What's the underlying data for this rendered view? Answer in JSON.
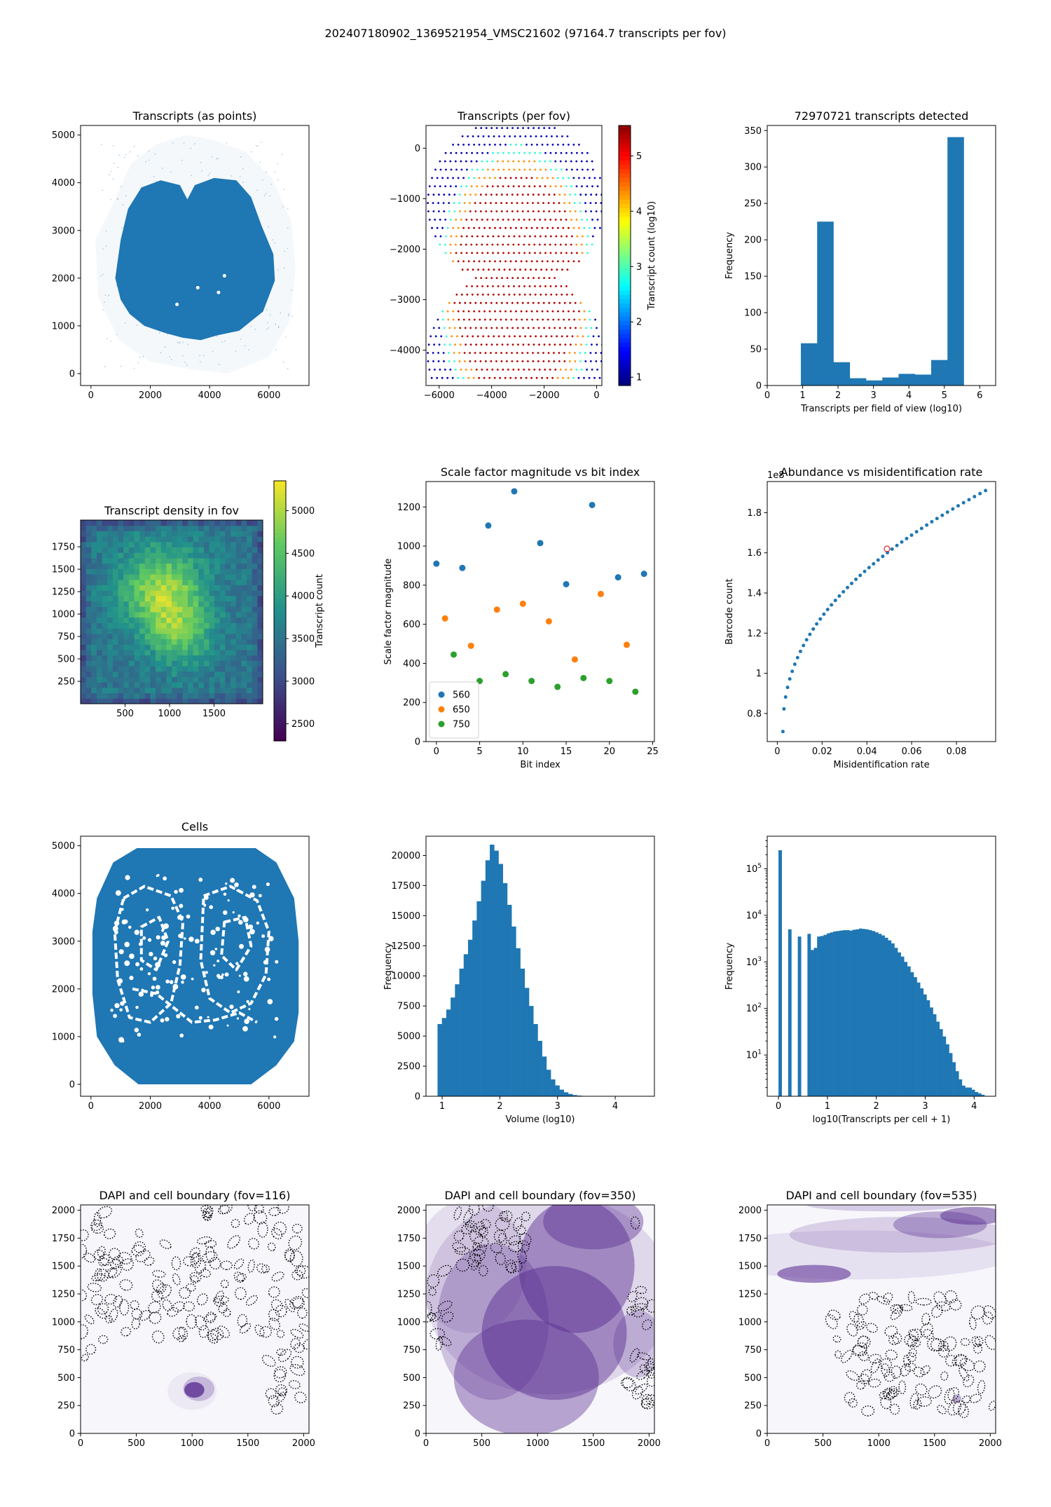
{
  "suptitle": "202407180902_1369521954_VMSC21602 (97164.7 transcripts per fov)",
  "colors": {
    "blue": "#1f77b4",
    "orange": "#ff7f0e",
    "green": "#2ca02c",
    "purple": "#54278f"
  },
  "chart_data": [
    {
      "id": "p1",
      "type": "scatter",
      "title": "Transcripts (as points)",
      "xlim": [
        -350,
        7350
      ],
      "ylim": [
        -250,
        5200
      ],
      "xticks": [
        0,
        2000,
        4000,
        6000
      ],
      "yticks": [
        0,
        1000,
        2000,
        3000,
        4000,
        5000
      ],
      "shape": {
        "lobes": [
          [
            820,
            2000
          ],
          [
            1000,
            2800
          ],
          [
            1250,
            3450
          ],
          [
            1700,
            3900
          ],
          [
            2350,
            4050
          ],
          [
            3000,
            3950
          ],
          [
            3250,
            3650
          ],
          [
            3500,
            3950
          ],
          [
            4150,
            4100
          ],
          [
            4900,
            4050
          ],
          [
            5400,
            3700
          ],
          [
            5750,
            3100
          ],
          [
            6150,
            2500
          ],
          [
            6200,
            1950
          ],
          [
            5800,
            1300
          ],
          [
            5000,
            900
          ],
          [
            4250,
            800
          ],
          [
            3700,
            700
          ],
          [
            3100,
            750
          ],
          [
            2500,
            850
          ],
          [
            1800,
            1000
          ],
          [
            1300,
            1250
          ],
          [
            1000,
            1550
          ]
        ],
        "sparse": [
          [
            700,
            3500
          ],
          [
            1350,
            4400
          ],
          [
            2200,
            4800
          ],
          [
            3200,
            5000
          ],
          [
            4100,
            4900
          ],
          [
            5200,
            4650
          ],
          [
            6100,
            4100
          ],
          [
            6750,
            3200
          ],
          [
            6900,
            2200
          ],
          [
            6700,
            1100
          ],
          [
            6000,
            350
          ],
          [
            4600,
            0
          ],
          [
            3300,
            100
          ],
          [
            2000,
            250
          ],
          [
            950,
            700
          ],
          [
            250,
            1600
          ],
          [
            150,
            2800
          ]
        ]
      }
    },
    {
      "id": "p2",
      "type": "scatter",
      "title": "Transcripts (per fov)",
      "xlim": [
        -6500,
        200
      ],
      "ylim": [
        -4700,
        450
      ],
      "xticks": [
        -6000,
        -4000,
        -2000,
        0
      ],
      "yticks": [
        -4000,
        -3000,
        -2000,
        -1000,
        0
      ],
      "grid": {
        "dy": -165,
        "row_half_widths": [
          1550,
          2060,
          2420,
          2700,
          2920,
          3090,
          3220,
          3310,
          3360,
          3380,
          3360,
          3310,
          3220,
          3090,
          2920,
          2700,
          2420,
          2060,
          1550,
          1900,
          2280,
          2560,
          2820,
          3000,
          3150,
          3270,
          3340,
          3380,
          3370,
          3320,
          3230,
          3110,
          2940,
          2730,
          2470,
          2120,
          1630,
          1100
        ],
        "center_x": -3050,
        "top_y": 400
      },
      "colorbar": {
        "label": "Transcript count (log10)",
        "range": [
          0.85,
          5.55
        ],
        "ticks": [
          1,
          2,
          3,
          4,
          5
        ]
      }
    },
    {
      "id": "p3",
      "type": "bar",
      "title": "72970721 transcripts detected",
      "xlabel": "Transcripts per field of view (log10)",
      "ylabel": "Frequency",
      "xlim": [
        0,
        6.45
      ],
      "ylim": [
        0,
        357
      ],
      "xticks": [
        0,
        1,
        2,
        3,
        4,
        5,
        6
      ],
      "yticks": [
        0,
        50,
        100,
        150,
        200,
        250,
        300,
        350
      ],
      "bin_edges": [
        0.95,
        1.41,
        1.87,
        2.33,
        2.79,
        3.25,
        3.71,
        4.17,
        4.63,
        5.09,
        5.55
      ],
      "values": [
        58,
        225,
        32,
        10,
        7,
        11,
        16,
        15,
        35,
        341
      ]
    },
    {
      "id": "p4",
      "type": "heatmap",
      "title": "Transcript density in fov",
      "xlim": [
        0,
        2048
      ],
      "ylim": [
        0,
        2048
      ],
      "xticks": [
        500,
        1000,
        1500
      ],
      "yticks": [
        250,
        500,
        750,
        1000,
        1250,
        1500,
        1750
      ],
      "colorbar": {
        "label": "Transcript count",
        "range": [
          2300,
          5350
        ],
        "ticks": [
          2500,
          3000,
          3500,
          4000,
          4500,
          5000
        ]
      }
    },
    {
      "id": "p5",
      "type": "scatter",
      "title": "Scale factor magnitude vs bit index",
      "xlabel": "Bit index",
      "ylabel": "Scale factor magnitude",
      "xlim": [
        -1.2,
        25.2
      ],
      "ylim": [
        0,
        1330
      ],
      "xticks": [
        0,
        5,
        10,
        15,
        20,
        25
      ],
      "yticks": [
        0,
        200,
        400,
        600,
        800,
        1000,
        1200
      ],
      "legend": "lower left",
      "series": [
        {
          "name": "560",
          "x": [
            0,
            3,
            6,
            9,
            12,
            15,
            18,
            21,
            24
          ],
          "y": [
            910,
            888,
            1105,
            1280,
            1015,
            805,
            1210,
            840,
            858
          ]
        },
        {
          "name": "650",
          "x": [
            1,
            4,
            7,
            10,
            13,
            16,
            19,
            22
          ],
          "y": [
            630,
            490,
            675,
            705,
            615,
            420,
            755,
            495
          ]
        },
        {
          "name": "750",
          "x": [
            2,
            5,
            8,
            11,
            14,
            17,
            20,
            23
          ],
          "y": [
            445,
            310,
            345,
            310,
            280,
            325,
            310,
            255
          ]
        }
      ]
    },
    {
      "id": "p6",
      "type": "scatter",
      "title": "Abundance vs misidentification rate",
      "xlabel": "Misidentification rate",
      "ylabel": "Barcode count",
      "offset": "1e8",
      "xlim": [
        -0.0045,
        0.0975
      ],
      "ylim": [
        0.66,
        1.955
      ],
      "xticks": [
        0.0,
        0.02,
        0.04,
        0.06,
        0.08
      ],
      "yticks": [
        0.8,
        1.0,
        1.2,
        1.4,
        1.6,
        1.8
      ],
      "x_range": [
        0.0025,
        0.093
      ],
      "n_points": 50,
      "highlight": {
        "x": 0.049,
        "y": 1.62
      }
    },
    {
      "id": "p7",
      "type": "scatter",
      "title": "Cells",
      "xlim": [
        -350,
        7350
      ],
      "ylim": [
        -250,
        5200
      ],
      "xticks": [
        0,
        2000,
        4000,
        6000
      ],
      "yticks": [
        0,
        1000,
        2000,
        3000,
        4000,
        5000
      ],
      "shape": [
        [
          1550,
          4950
        ],
        [
          5550,
          4950
        ],
        [
          6250,
          4650
        ],
        [
          6850,
          3900
        ],
        [
          7000,
          3000
        ],
        [
          7000,
          1500
        ],
        [
          6850,
          900
        ],
        [
          6250,
          400
        ],
        [
          5400,
          0
        ],
        [
          1600,
          0
        ],
        [
          800,
          400
        ],
        [
          200,
          1000
        ],
        [
          50,
          1900
        ],
        [
          50,
          3200
        ],
        [
          200,
          3900
        ],
        [
          750,
          4650
        ]
      ]
    },
    {
      "id": "p8",
      "type": "bar",
      "title": "",
      "xlabel": "Volume (log10)",
      "ylabel": "Frequency",
      "xlim": [
        0.72,
        4.68
      ],
      "ylim": [
        0,
        21600
      ],
      "xticks": [
        1,
        2,
        3,
        4
      ],
      "yticks": [
        0,
        2500,
        5000,
        7500,
        10000,
        12500,
        15000,
        17500,
        20000
      ],
      "bin_start": 0.92,
      "bin_width": 0.0755,
      "values": [
        6000,
        6500,
        7200,
        8200,
        9300,
        10600,
        11800,
        13000,
        14600,
        16200,
        17900,
        19600,
        20900,
        20400,
        19300,
        17700,
        15900,
        14100,
        12300,
        10600,
        9000,
        7500,
        6000,
        4600,
        3300,
        2200,
        1400,
        900,
        550,
        330,
        190,
        100,
        55,
        30,
        15
      ]
    },
    {
      "id": "p9",
      "type": "bar",
      "title": "",
      "xlabel": "log10(Transcripts per cell + 1)",
      "ylabel": "Frequency",
      "yscale": "log",
      "xlim": [
        -0.23,
        4.44
      ],
      "ylim": [
        1.3,
        500000
      ],
      "xticks": [
        0,
        1,
        2,
        3,
        4
      ],
      "ytick_exponents": [
        1,
        2,
        3,
        4,
        5
      ],
      "bin_start": 0,
      "bin_width": 0.0658,
      "values": [
        250000,
        1,
        1,
        5000,
        1,
        1,
        3500,
        1,
        1,
        4000,
        1800,
        2000,
        3500,
        3600,
        3800,
        4100,
        4300,
        4500,
        4600,
        4700,
        4800,
        4800,
        4700,
        4900,
        5000,
        5200,
        5100,
        5000,
        4800,
        4600,
        4300,
        4000,
        3700,
        3300,
        2900,
        2500,
        2000,
        1600,
        1300,
        1000,
        800,
        600,
        470,
        360,
        270,
        200,
        150,
        105,
        75,
        52,
        36,
        25,
        17,
        11,
        7,
        4.5,
        3,
        2.2,
        2,
        2,
        1.8,
        1.6,
        1.5,
        1.4,
        1.3,
        1.2
      ]
    },
    {
      "id": "p10",
      "type": "scatter",
      "title": "DAPI and cell boundary (fov=116)",
      "xlim": [
        0,
        2048
      ],
      "ylim": [
        0,
        2048
      ],
      "xticks": [
        0,
        500,
        1000,
        1500,
        2000
      ],
      "yticks": [
        0,
        250,
        500,
        750,
        1000,
        1250,
        1500,
        1750,
        2000
      ]
    },
    {
      "id": "p11",
      "type": "scatter",
      "title": "DAPI and cell boundary (fov=350)",
      "xlim": [
        0,
        2048
      ],
      "ylim": [
        0,
        2048
      ],
      "xticks": [
        0,
        500,
        1000,
        1500,
        2000
      ],
      "yticks": [
        0,
        250,
        500,
        750,
        1000,
        1250,
        1500,
        1750,
        2000
      ]
    },
    {
      "id": "p12",
      "type": "scatter",
      "title": "DAPI and cell boundary (fov=535)",
      "xlim": [
        0,
        2048
      ],
      "ylim": [
        0,
        2048
      ],
      "xticks": [
        0,
        500,
        1000,
        1500,
        2000
      ],
      "yticks": [
        0,
        250,
        500,
        750,
        1000,
        1250,
        1500,
        1750,
        2000
      ]
    }
  ]
}
